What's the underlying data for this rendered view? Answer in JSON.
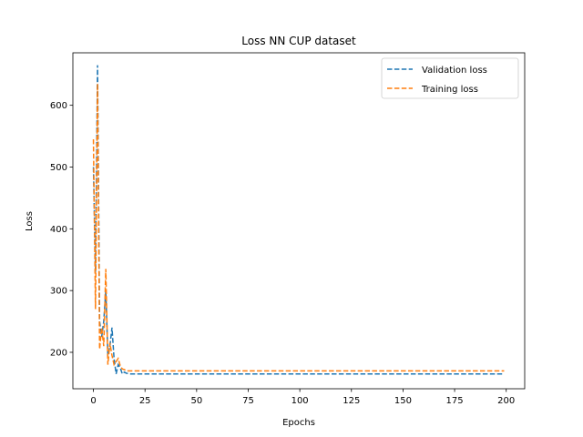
{
  "chart_data": {
    "type": "line",
    "title": "Loss NN CUP dataset",
    "xlabel": "Epochs",
    "ylabel": "Loss",
    "xlim": [
      -9.95,
      208.95
    ],
    "ylim": [
      141,
      685
    ],
    "xticks": [
      0,
      25,
      50,
      75,
      100,
      125,
      150,
      175,
      200
    ],
    "yticks": [
      200,
      300,
      400,
      500,
      600
    ],
    "grid": false,
    "legend_position": "top-right",
    "series": [
      {
        "name": "Validation loss",
        "color": "#1f77b4",
        "x": [
          0,
          1,
          2,
          3,
          4,
          5,
          6,
          7,
          8,
          9,
          10,
          11,
          12,
          13,
          14,
          15,
          16,
          18,
          20,
          25,
          50,
          75,
          100,
          125,
          150,
          175,
          199
        ],
        "y": [
          500,
          330,
          665,
          250,
          225,
          250,
          300,
          195,
          210,
          240,
          190,
          165,
          180,
          175,
          165,
          168,
          166,
          165,
          165,
          165,
          165,
          165,
          165,
          165,
          165,
          165,
          165
        ]
      },
      {
        "name": "Training loss",
        "color": "#ff7f0e",
        "x": [
          0,
          1,
          2,
          3,
          4,
          5,
          6,
          7,
          8,
          9,
          10,
          11,
          12,
          13,
          14,
          15,
          16,
          18,
          20,
          25,
          50,
          75,
          100,
          125,
          150,
          175,
          199
        ],
        "y": [
          545,
          270,
          635,
          205,
          240,
          210,
          335,
          180,
          215,
          195,
          180,
          185,
          190,
          178,
          173,
          172,
          170,
          170,
          170,
          170,
          170,
          170,
          170,
          170,
          170,
          170,
          170
        ]
      }
    ]
  }
}
